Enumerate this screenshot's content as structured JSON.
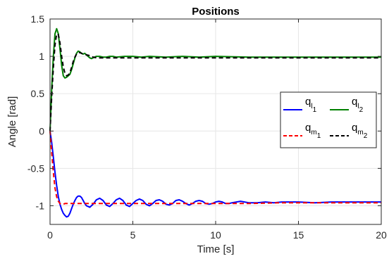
{
  "chart_data": {
    "type": "line",
    "title": "Positions",
    "xlabel": "Time [s]",
    "ylabel": "Angle [rad]",
    "xlim": [
      0,
      20
    ],
    "ylim": [
      -1.25,
      1.5
    ],
    "xticks": [
      0,
      5,
      10,
      15,
      20
    ],
    "xtick_labels": [
      "0",
      "5",
      "10",
      "15",
      "20"
    ],
    "yticks": [
      -1,
      -0.5,
      0,
      0.5,
      1,
      1.5
    ],
    "ytick_labels": [
      "-1",
      "-0.5",
      "0",
      "0.5",
      "1",
      "1.5"
    ],
    "grid": true,
    "legend_position": "right",
    "series": [
      {
        "name": "q_l1",
        "label_main": "q",
        "label_sub1": "l",
        "label_sub2": "1",
        "color": "#0000ff",
        "dash": "solid",
        "x": [
          0,
          0.1,
          0.2,
          0.3,
          0.4,
          0.5,
          0.6,
          0.7,
          0.8,
          0.9,
          1.0,
          1.1,
          1.2,
          1.3,
          1.4,
          1.5,
          1.6,
          1.7,
          1.8,
          1.9,
          2.0,
          2.1,
          2.2,
          2.4,
          2.6,
          2.8,
          3.0,
          3.2,
          3.4,
          3.6,
          3.8,
          4.0,
          4.2,
          4.4,
          4.6,
          4.8,
          5.0,
          5.2,
          5.4,
          5.6,
          5.8,
          6.0,
          6.2,
          6.4,
          6.6,
          6.8,
          7.0,
          7.2,
          7.4,
          7.6,
          7.8,
          8.0,
          8.2,
          8.4,
          8.6,
          8.8,
          9.0,
          9.2,
          9.4,
          9.6,
          9.8,
          10.0,
          10.2,
          10.4,
          10.6,
          10.8,
          11.0,
          11.5,
          12.0,
          12.5,
          13.0,
          13.5,
          14.0,
          15.0,
          16.0,
          17.0,
          18.0,
          19.0,
          20.0
        ],
        "y": [
          0,
          -0.15,
          -0.35,
          -0.55,
          -0.73,
          -0.88,
          -0.98,
          -1.05,
          -1.1,
          -1.13,
          -1.15,
          -1.14,
          -1.1,
          -1.04,
          -0.98,
          -0.93,
          -0.89,
          -0.87,
          -0.87,
          -0.89,
          -0.93,
          -0.97,
          -1.0,
          -1.02,
          -0.98,
          -0.92,
          -0.9,
          -0.93,
          -0.99,
          -1.01,
          -0.97,
          -0.92,
          -0.9,
          -0.93,
          -0.99,
          -1.01,
          -0.97,
          -0.93,
          -0.91,
          -0.93,
          -0.98,
          -1.0,
          -0.97,
          -0.93,
          -0.92,
          -0.94,
          -0.98,
          -0.99,
          -0.97,
          -0.93,
          -0.92,
          -0.94,
          -0.97,
          -0.99,
          -0.97,
          -0.94,
          -0.93,
          -0.94,
          -0.97,
          -0.98,
          -0.97,
          -0.95,
          -0.94,
          -0.95,
          -0.97,
          -0.97,
          -0.96,
          -0.94,
          -0.96,
          -0.96,
          -0.95,
          -0.96,
          -0.95,
          -0.95,
          -0.96,
          -0.95,
          -0.95,
          -0.95,
          -0.95
        ]
      },
      {
        "name": "q_l2",
        "label_main": "q",
        "label_sub1": "l",
        "label_sub2": "2",
        "color": "#008000",
        "dash": "solid",
        "x": [
          0,
          0.1,
          0.2,
          0.3,
          0.4,
          0.5,
          0.6,
          0.7,
          0.8,
          0.9,
          1.0,
          1.1,
          1.2,
          1.3,
          1.4,
          1.5,
          1.6,
          1.7,
          1.8,
          1.9,
          2.0,
          2.1,
          2.2,
          2.3,
          2.4,
          2.5,
          2.6,
          2.8,
          3.0,
          3.2,
          3.4,
          3.6,
          3.8,
          4.0,
          4.5,
          5.0,
          5.5,
          6.0,
          7.0,
          8.0,
          9.0,
          10.0,
          12.0,
          14.0,
          16.0,
          18.0,
          20.0
        ],
        "y": [
          0.0,
          0.55,
          1.0,
          1.3,
          1.37,
          1.3,
          1.1,
          0.88,
          0.74,
          0.71,
          0.72,
          0.74,
          0.76,
          0.82,
          0.9,
          0.98,
          1.04,
          1.07,
          1.06,
          1.04,
          1.03,
          1.04,
          1.02,
          1.0,
          0.98,
          0.97,
          0.98,
          1.0,
          1.0,
          0.99,
          0.99,
          1.0,
          1.0,
          0.99,
          1.0,
          1.0,
          0.99,
          1.0,
          0.99,
          1.0,
          0.99,
          1.0,
          0.99,
          0.99,
          0.99,
          0.99,
          0.99
        ]
      },
      {
        "name": "q_m1",
        "label_main": "q",
        "label_sub1": "m",
        "label_sub2": "1",
        "color": "#ff0000",
        "dash": "dashed",
        "x": [
          0,
          0.1,
          0.2,
          0.3,
          0.4,
          0.5,
          0.6,
          0.7,
          0.8,
          0.9,
          1.0,
          1.2,
          1.5,
          2.0,
          3.0,
          4.0,
          5.0,
          6.0,
          7.0,
          8.0,
          9.0,
          10.0,
          12.0,
          14.0,
          16.0,
          18.0,
          20.0
        ],
        "y": [
          0,
          -0.28,
          -0.55,
          -0.76,
          -0.88,
          -0.94,
          -0.97,
          -0.98,
          -0.98,
          -0.97,
          -0.97,
          -0.97,
          -0.97,
          -0.97,
          -0.97,
          -0.97,
          -0.97,
          -0.97,
          -0.97,
          -0.97,
          -0.97,
          -0.97,
          -0.97,
          -0.96,
          -0.96,
          -0.96,
          -0.96
        ]
      },
      {
        "name": "q_m2",
        "label_main": "q",
        "label_sub1": "m",
        "label_sub2": "2",
        "color": "#000000",
        "dash": "dashed",
        "x": [
          0,
          0.1,
          0.2,
          0.3,
          0.4,
          0.5,
          0.6,
          0.7,
          0.8,
          0.9,
          1.0,
          1.1,
          1.2,
          1.3,
          1.4,
          1.5,
          1.6,
          1.7,
          1.8,
          1.9,
          2.0,
          2.2,
          2.4,
          2.6,
          2.8,
          3.0,
          3.5,
          4.0,
          5.0,
          6.0,
          8.0,
          10.0,
          12.0,
          14.0,
          16.0,
          18.0,
          20.0
        ],
        "y": [
          0.0,
          0.45,
          0.85,
          1.15,
          1.3,
          1.29,
          1.18,
          1.0,
          0.86,
          0.77,
          0.74,
          0.75,
          0.78,
          0.85,
          0.93,
          0.99,
          1.03,
          1.05,
          1.05,
          1.04,
          1.03,
          1.02,
          1.01,
          0.99,
          0.98,
          0.98,
          0.98,
          0.98,
          0.98,
          0.98,
          0.98,
          0.98,
          0.98,
          0.98,
          0.98,
          0.98,
          0.98
        ]
      }
    ]
  }
}
